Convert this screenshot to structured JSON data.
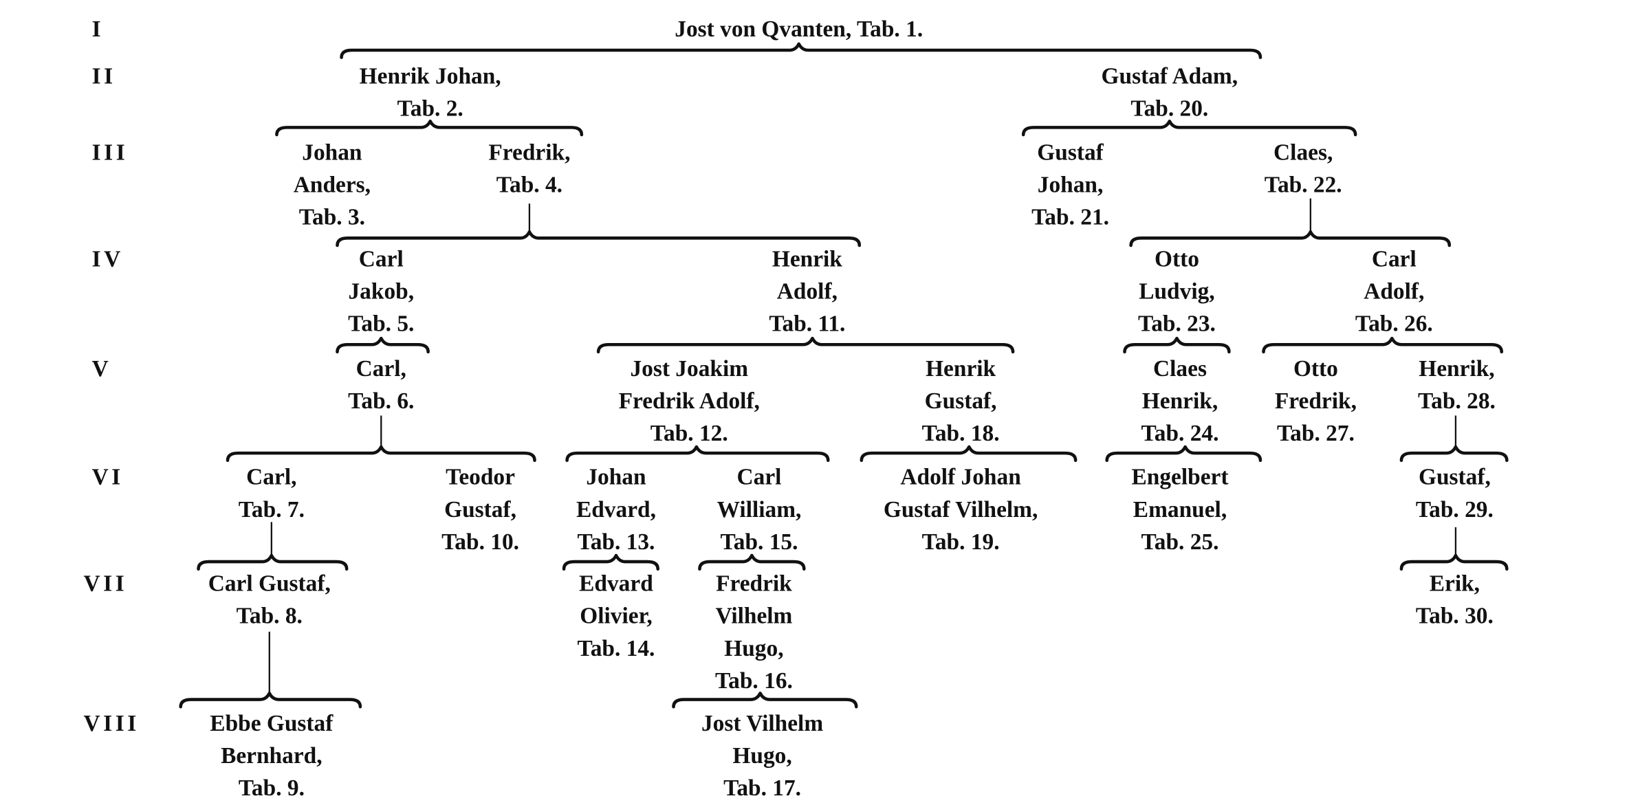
{
  "generations": [
    "I",
    "II",
    "III",
    "IV",
    "V",
    "VI",
    "VII",
    "VIII"
  ],
  "people": [
    {
      "lines": [
        "Jost von Qvanten, Tab. 1."
      ]
    },
    {
      "lines": [
        "Henrik Johan,",
        "Tab. 2."
      ]
    },
    {
      "lines": [
        "Gustaf Adam,",
        "Tab. 20."
      ]
    },
    {
      "lines": [
        "Johan",
        "Anders,",
        "Tab. 3."
      ]
    },
    {
      "lines": [
        "Fredrik,",
        "Tab. 4."
      ]
    },
    {
      "lines": [
        "Gustaf",
        "Johan,",
        "Tab. 21."
      ]
    },
    {
      "lines": [
        "Claes,",
        "Tab. 22."
      ]
    },
    {
      "lines": [
        "Carl",
        "Jakob,",
        "Tab. 5."
      ]
    },
    {
      "lines": [
        "Henrik",
        "Adolf,",
        "Tab. 11."
      ]
    },
    {
      "lines": [
        "Otto",
        "Ludvig,",
        "Tab. 23."
      ]
    },
    {
      "lines": [
        "Carl",
        "Adolf,",
        "Tab. 26."
      ]
    },
    {
      "lines": [
        "Carl,",
        "Tab. 6."
      ]
    },
    {
      "lines": [
        "Jost Joakim",
        "Fredrik Adolf,",
        "Tab. 12."
      ]
    },
    {
      "lines": [
        "Henrik",
        "Gustaf,",
        "Tab. 18."
      ]
    },
    {
      "lines": [
        "Claes",
        "Henrik,",
        "Tab. 24."
      ]
    },
    {
      "lines": [
        "Otto",
        "Fredrik,",
        "Tab. 27."
      ]
    },
    {
      "lines": [
        "Henrik,",
        "Tab. 28."
      ]
    },
    {
      "lines": [
        "Carl,",
        "Tab. 7."
      ]
    },
    {
      "lines": [
        "Teodor",
        "Gustaf,",
        "Tab. 10."
      ]
    },
    {
      "lines": [
        "Johan",
        "Edvard,",
        "Tab. 13."
      ]
    },
    {
      "lines": [
        "Carl",
        "William,",
        "Tab. 15."
      ]
    },
    {
      "lines": [
        "Adolf Johan",
        "Gustaf  Vilhelm,",
        "Tab. 19."
      ]
    },
    {
      "lines": [
        "Engelbert",
        "Emanuel,",
        "Tab. 25."
      ]
    },
    {
      "lines": [
        "Gustaf,",
        "Tab. 29."
      ]
    },
    {
      "lines": [
        "Carl Gustaf,",
        "Tab. 8."
      ]
    },
    {
      "lines": [
        "Edvard",
        "Olivier,",
        "Tab. 14."
      ]
    },
    {
      "lines": [
        "Fredrik",
        "Vilhelm",
        "Hugo,",
        "Tab. 16."
      ]
    },
    {
      "lines": [
        "Erik,",
        "Tab. 30."
      ]
    },
    {
      "lines": [
        "Ebbe  Gustaf",
        "Bernhard,",
        "Tab. 9."
      ]
    },
    {
      "lines": [
        "Jost  Vilhelm",
        "Hugo,",
        "Tab. 17."
      ]
    }
  ]
}
